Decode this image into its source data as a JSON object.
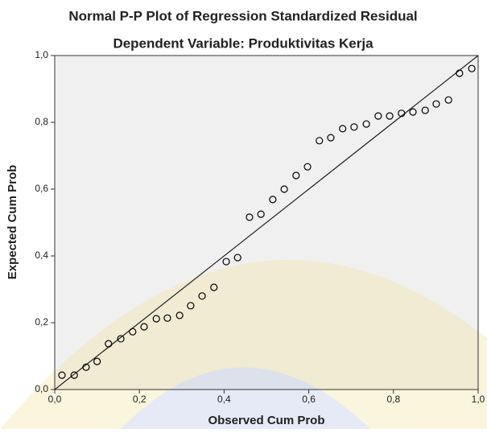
{
  "chart_data": {
    "type": "scatter",
    "title": "Normal P-P Plot of Regression Standardized Residual",
    "subtitle": "Dependent Variable: Produktivitas Kerja",
    "x_label": "Observed Cum Prob",
    "y_label": "Expected Cum Prob",
    "x": [
      0.017,
      0.046,
      0.074,
      0.1,
      0.127,
      0.156,
      0.184,
      0.211,
      0.24,
      0.266,
      0.295,
      0.321,
      0.348,
      0.376,
      0.405,
      0.432,
      0.46,
      0.487,
      0.515,
      0.542,
      0.57,
      0.597,
      0.625,
      0.652,
      0.68,
      0.707,
      0.736,
      0.764,
      0.791,
      0.819,
      0.846,
      0.875,
      0.901,
      0.93,
      0.956,
      0.985
    ],
    "values": [
      0.043,
      0.043,
      0.067,
      0.084,
      0.137,
      0.152,
      0.173,
      0.188,
      0.212,
      0.214,
      0.222,
      0.251,
      0.28,
      0.306,
      0.383,
      0.395,
      0.516,
      0.525,
      0.569,
      0.6,
      0.641,
      0.667,
      0.745,
      0.754,
      0.781,
      0.786,
      0.795,
      0.819,
      0.819,
      0.827,
      0.831,
      0.836,
      0.855,
      0.867,
      0.947,
      0.961
    ],
    "color": "#000000",
    "xlim": [
      0,
      1
    ],
    "ylim": [
      0,
      1
    ],
    "xticks": [
      {
        "value": 0,
        "label": "0,0"
      },
      {
        "value": 0.2,
        "label": "0,2"
      },
      {
        "value": 0.4,
        "label": "0,4"
      },
      {
        "value": 0.6,
        "label": "0,6"
      },
      {
        "value": 0.8,
        "label": "0,8"
      },
      {
        "value": 1,
        "label": "1,0"
      }
    ],
    "yticks": [
      {
        "value": 0,
        "label": "0,0"
      },
      {
        "value": 0.2,
        "label": "0,2"
      },
      {
        "value": 0.4,
        "label": "0,4"
      },
      {
        "value": 0.6,
        "label": "0,6"
      },
      {
        "value": 0.8,
        "label": "0,8"
      },
      {
        "value": 1,
        "label": "1,0"
      }
    ],
    "reference_line": true
  }
}
